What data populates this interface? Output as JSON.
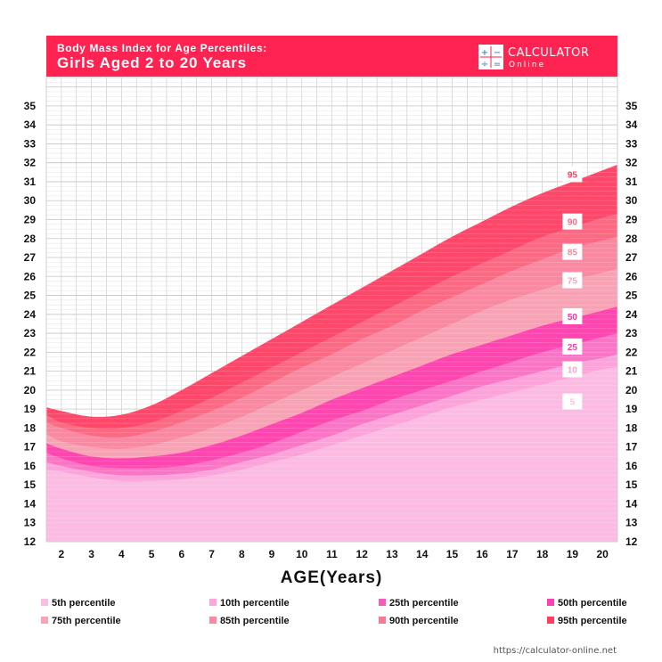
{
  "header": {
    "title_line1": "Body Mass Index for Age Percentiles:",
    "title_line2": "Girls Aged 2 to 20 Years",
    "brand": {
      "name": "CALCULATOR",
      "sub": "Online",
      "icon_glyphs": [
        "+",
        "−",
        "÷",
        "="
      ]
    },
    "color": "#ff2351"
  },
  "chart_data": {
    "type": "area",
    "title": "Body Mass Index for Age Percentiles: Girls Aged 2 to 20 Years",
    "xlabel": "AGE(Years)",
    "ylabel": "",
    "xlim": [
      1.5,
      20.5
    ],
    "ylim": [
      12,
      36.5
    ],
    "x_ticks": [
      2,
      3,
      4,
      5,
      6,
      7,
      8,
      9,
      10,
      11,
      12,
      13,
      14,
      15,
      16,
      17,
      18,
      19,
      20
    ],
    "y_ticks": [
      12,
      13,
      14,
      15,
      16,
      17,
      18,
      19,
      20,
      21,
      22,
      23,
      24,
      25,
      26,
      27,
      28,
      29,
      30,
      31,
      32,
      33,
      34,
      35
    ],
    "grid": true,
    "legend_position": "bottom",
    "x": [
      1.5,
      2,
      3,
      4,
      5,
      6,
      7,
      8,
      9,
      10,
      11,
      12,
      13,
      14,
      15,
      16,
      17,
      18,
      19,
      20,
      20.5
    ],
    "series": [
      {
        "name": "95th percentile",
        "label": "95",
        "color": "#ff3d62",
        "tag_color": "#ff3d62",
        "values": [
          19.1,
          18.9,
          18.6,
          18.7,
          19.2,
          20.0,
          20.9,
          21.8,
          22.7,
          23.6,
          24.5,
          25.4,
          26.3,
          27.2,
          28.1,
          28.9,
          29.7,
          30.4,
          31.0,
          31.6,
          31.9
        ]
      },
      {
        "name": "90th percentile",
        "label": "90",
        "color": "#fc6b85",
        "tag_color": "#fc6b85",
        "values": [
          18.7,
          18.3,
          18.0,
          18.0,
          18.3,
          18.9,
          19.6,
          20.4,
          21.2,
          22.0,
          22.8,
          23.6,
          24.4,
          25.2,
          26.0,
          26.7,
          27.4,
          28.1,
          28.6,
          29.1,
          29.3
        ]
      },
      {
        "name": "85th percentile",
        "label": "85",
        "color": "#f98aa2",
        "tag_color": "#f98aa2",
        "values": [
          18.3,
          18.0,
          17.6,
          17.5,
          17.8,
          18.3,
          18.9,
          19.6,
          20.4,
          21.2,
          21.9,
          22.7,
          23.4,
          24.2,
          24.9,
          25.6,
          26.3,
          26.9,
          27.5,
          27.9,
          28.1
        ]
      },
      {
        "name": "75th percentile",
        "label": "75",
        "color": "#f7a4b6",
        "tag_color": "#f7a4b6",
        "values": [
          17.7,
          17.3,
          17.0,
          16.9,
          17.1,
          17.5,
          18.0,
          18.6,
          19.3,
          20.0,
          20.7,
          21.4,
          22.1,
          22.8,
          23.5,
          24.2,
          24.8,
          25.3,
          25.8,
          26.2,
          26.4
        ]
      },
      {
        "name": "50th percentile",
        "label": "50",
        "color": "#ff40b0",
        "tag_color": "#ff2d9f",
        "values": [
          17.2,
          16.9,
          16.5,
          16.4,
          16.5,
          16.7,
          17.1,
          17.6,
          18.2,
          18.8,
          19.5,
          20.1,
          20.7,
          21.3,
          21.9,
          22.4,
          22.9,
          23.4,
          23.8,
          24.2,
          24.4
        ]
      },
      {
        "name": "25th percentile",
        "label": "25",
        "color": "#fb78c7",
        "tag_color": "#ff3aa8",
        "values": [
          16.7,
          16.4,
          16.0,
          15.9,
          15.9,
          16.0,
          16.3,
          16.7,
          17.2,
          17.8,
          18.4,
          18.9,
          19.5,
          20.0,
          20.5,
          21.0,
          21.5,
          22.0,
          22.4,
          22.8,
          23.0
        ]
      },
      {
        "name": "10th percentile",
        "label": "10",
        "color": "#fda5dc",
        "tag_color": "#f7a3d6",
        "values": [
          16.2,
          16.0,
          15.7,
          15.5,
          15.5,
          15.6,
          15.8,
          16.2,
          16.6,
          17.1,
          17.6,
          18.2,
          18.7,
          19.2,
          19.7,
          20.2,
          20.6,
          21.0,
          21.4,
          21.7,
          21.9
        ]
      },
      {
        "name": "5th percentile",
        "label": "5",
        "color": "#fbbde3",
        "tag_color": "#f5c4e2",
        "values": [
          15.8,
          15.7,
          15.4,
          15.2,
          15.2,
          15.3,
          15.5,
          15.8,
          16.2,
          16.6,
          17.1,
          17.6,
          18.1,
          18.6,
          19.1,
          19.5,
          19.9,
          20.3,
          20.7,
          21.1,
          21.2
        ]
      }
    ],
    "base_color": "#fbc9e6",
    "tag_positions": [
      {
        "label": "95",
        "x": 19,
        "y": 31.4
      },
      {
        "label": "90",
        "x": 19,
        "y": 28.9
      },
      {
        "label": "85",
        "x": 19,
        "y": 27.3
      },
      {
        "label": "75",
        "x": 19,
        "y": 25.8
      },
      {
        "label": "50",
        "x": 19,
        "y": 23.9
      },
      {
        "label": "25",
        "x": 19,
        "y": 22.3
      },
      {
        "label": "10",
        "x": 19,
        "y": 21.1
      },
      {
        "label": "5",
        "x": 19,
        "y": 19.4
      }
    ]
  },
  "legend": {
    "items": [
      {
        "label": "5th percentile",
        "color": "#fbbde3"
      },
      {
        "label": "10th percentile",
        "color": "#fda5dc"
      },
      {
        "label": "25th percentile",
        "color": "#f95bbd"
      },
      {
        "label": "50th percentile",
        "color": "#ff40b0"
      },
      {
        "label": "75th percentile",
        "color": "#f7a4b6"
      },
      {
        "label": "85th percentile",
        "color": "#f98aa2"
      },
      {
        "label": "90th percentile",
        "color": "#fc7790"
      },
      {
        "label": "95th percentile",
        "color": "#ff3d62"
      }
    ]
  },
  "footer": {
    "url": "https://calculator-online.net"
  }
}
